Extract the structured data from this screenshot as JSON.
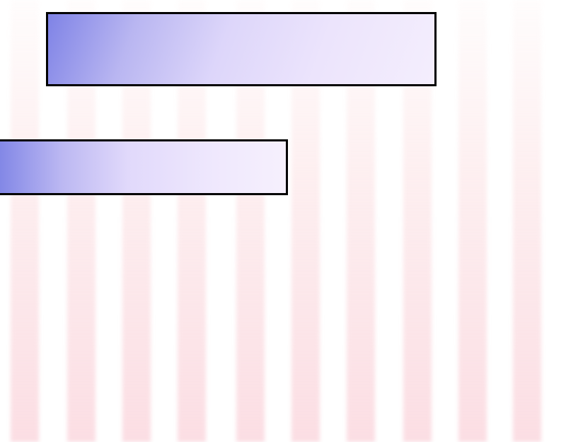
{
  "colors": {
    "background": "#ffffff",
    "stripe": "#fbdce2",
    "box_gradient_start": "#7f83e6",
    "box_gradient_end": "#f4eefd",
    "box_border": "#000000"
  },
  "stripe_count": 10,
  "panels": [
    {
      "name": "upper-panel"
    },
    {
      "name": "lower-panel"
    }
  ]
}
